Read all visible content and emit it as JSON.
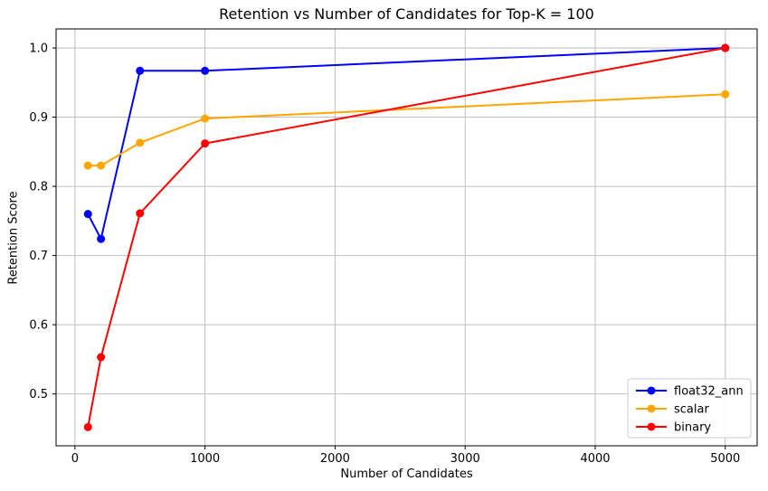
{
  "chart_data": {
    "type": "line",
    "title": "Retention vs Number of Candidates for Top-K = 100",
    "xlabel": "Number of Candidates",
    "ylabel": "Retention Score",
    "x": [
      100,
      200,
      500,
      1000,
      5000
    ],
    "series": [
      {
        "name": "float32_ann",
        "color": "#0000ff",
        "values": [
          0.76,
          0.724,
          0.967,
          0.967,
          1.0
        ]
      },
      {
        "name": "scalar",
        "color": "#ffa500",
        "values": [
          0.83,
          0.83,
          0.863,
          0.898,
          0.933
        ]
      },
      {
        "name": "binary",
        "color": "#ff0000",
        "values": [
          0.452,
          0.553,
          0.761,
          0.862,
          1.0
        ]
      }
    ],
    "xticks": [
      0,
      1000,
      2000,
      3000,
      4000,
      5000
    ],
    "xtick_labels": [
      "0",
      "1000",
      "2000",
      "3000",
      "4000",
      "5000"
    ],
    "yticks": [
      0.5,
      0.6,
      0.7,
      0.8,
      0.9,
      1.0
    ],
    "ytick_labels": [
      "0.5",
      "0.6",
      "0.7",
      "0.8",
      "0.9",
      "1.0"
    ],
    "xlim": [
      -145,
      5245
    ],
    "ylim": [
      0.425,
      1.0275
    ],
    "grid": true,
    "legend": {
      "position": "lower right",
      "entries": [
        "float32_ann",
        "scalar",
        "binary"
      ]
    },
    "colors": {
      "background": "#ffffff",
      "axis": "#000000",
      "grid": "#bfbfbf",
      "legend_border": "#cccccc",
      "legend_background": "#ffffff"
    },
    "marker": "circle",
    "marker_radius": 4.5,
    "line_width": 2
  }
}
